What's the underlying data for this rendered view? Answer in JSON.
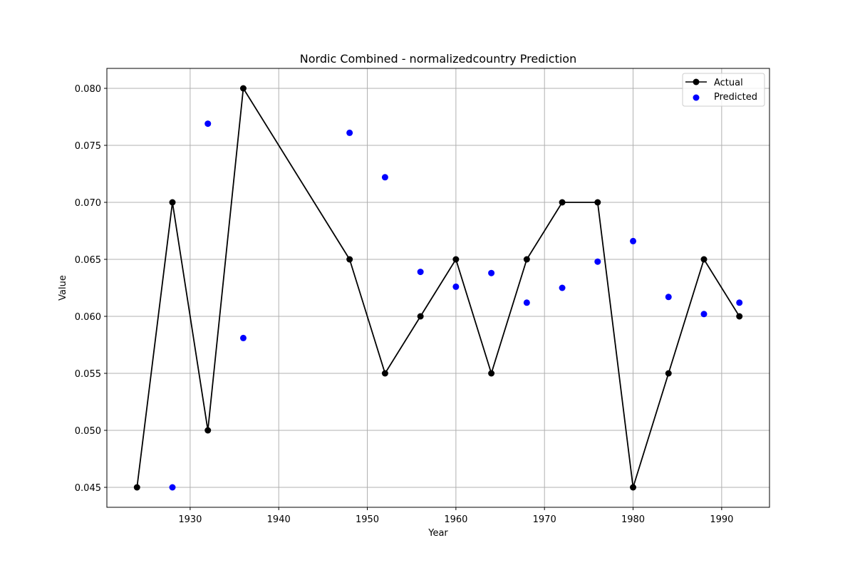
{
  "chart_data": {
    "type": "line",
    "title": "Nordic Combined - normalizedcountry Prediction",
    "xlabel": "Year",
    "ylabel": "Value",
    "xlim": [
      1920.6,
      1995.4
    ],
    "ylim": [
      0.04325,
      0.08175
    ],
    "x_ticks": [
      1930,
      1940,
      1950,
      1960,
      1970,
      1980,
      1990
    ],
    "y_ticks": [
      0.045,
      0.05,
      0.055,
      0.06,
      0.065,
      0.07,
      0.075,
      0.08
    ],
    "y_tick_labels": [
      "0.045",
      "0.050",
      "0.055",
      "0.060",
      "0.065",
      "0.070",
      "0.075",
      "0.080"
    ],
    "grid": true,
    "legend_position": "top-right",
    "series": [
      {
        "name": "Actual",
        "kind": "line-with-markers",
        "color": "#000000",
        "x": [
          1924,
          1928,
          1932,
          1936,
          1948,
          1952,
          1956,
          1960,
          1964,
          1968,
          1972,
          1976,
          1980,
          1984,
          1988,
          1992
        ],
        "y": [
          0.045,
          0.07,
          0.05,
          0.08,
          0.065,
          0.055,
          0.06,
          0.065,
          0.055,
          0.065,
          0.07,
          0.07,
          0.045,
          0.055,
          0.065,
          0.06
        ]
      },
      {
        "name": "Predicted",
        "kind": "scatter",
        "color": "#0000ff",
        "x": [
          1928,
          1932,
          1936,
          1948,
          1952,
          1956,
          1960,
          1964,
          1968,
          1972,
          1976,
          1980,
          1984,
          1988,
          1992
        ],
        "y": [
          0.045,
          0.0769,
          0.0581,
          0.0761,
          0.0722,
          0.0639,
          0.0626,
          0.0638,
          0.0612,
          0.0625,
          0.0648,
          0.0666,
          0.0617,
          0.0602,
          0.0612
        ]
      }
    ]
  }
}
